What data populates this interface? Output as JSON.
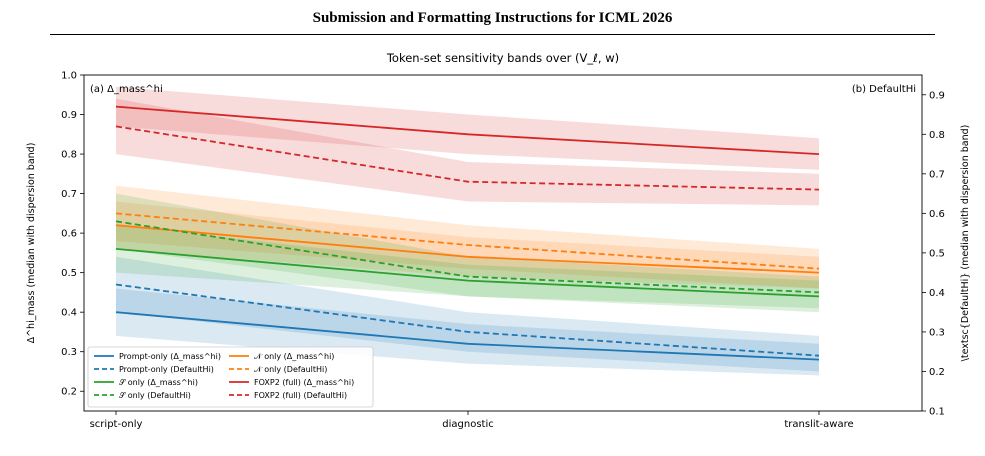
{
  "header": {
    "running_title": "Submission and Formatting Instructions for ICML 2026"
  },
  "chart_data": {
    "type": "line",
    "title": "Token-set sensitivity bands over (V_ℓ, w)",
    "panel_labels": {
      "left": "(a) Δ_mass^hi",
      "right": "(b) DefaultHi"
    },
    "categories": [
      "script-only",
      "diagnostic",
      "translit-aware"
    ],
    "ylabel_left": "Δ^hi_mass (median with dispersion band)",
    "ylabel_right": "\\textsc{DefaultHi} (median with dispersion band)",
    "ylim_left": [
      0.15,
      1.0
    ],
    "yticks_left": [
      "0.2",
      "0.3",
      "0.4",
      "0.5",
      "0.6",
      "0.7",
      "0.8",
      "0.9",
      "1.0"
    ],
    "ylim_right": [
      0.1,
      0.95
    ],
    "yticks_right": [
      "0.1",
      "0.2",
      "0.3",
      "0.4",
      "0.5",
      "0.6",
      "0.7",
      "0.8",
      "0.9"
    ],
    "legend_position": "lower-left",
    "grid": false,
    "series": [
      {
        "name": "Prompt-only  (Δ_mass^hi)",
        "color": "#1f77b4",
        "dash": "solid",
        "values": [
          0.4,
          0.32,
          0.28
        ],
        "band_low": [
          0.34,
          0.27,
          0.24
        ],
        "band_high": [
          0.46,
          0.37,
          0.32
        ]
      },
      {
        "name": "Prompt-only  (DefaultHi)",
        "color": "#1f77b4",
        "dash": "dashed",
        "values": [
          0.47,
          0.35,
          0.29
        ],
        "band_low": [
          0.4,
          0.3,
          0.25
        ],
        "band_high": [
          0.54,
          0.4,
          0.34
        ]
      },
      {
        "name": "𝒩 only  (Δ_mass^hi)",
        "color": "#ff7f0e",
        "dash": "solid",
        "values": [
          0.62,
          0.54,
          0.5
        ],
        "band_low": [
          0.56,
          0.49,
          0.46
        ],
        "band_high": [
          0.68,
          0.59,
          0.54
        ]
      },
      {
        "name": "𝒩 only  (DefaultHi)",
        "color": "#ff7f0e",
        "dash": "dashed",
        "values": [
          0.65,
          0.57,
          0.51
        ],
        "band_low": [
          0.58,
          0.51,
          0.46
        ],
        "band_high": [
          0.72,
          0.62,
          0.56
        ]
      },
      {
        "name": "𝒮 only  (Δ_mass^hi)",
        "color": "#2ca02c",
        "dash": "solid",
        "values": [
          0.56,
          0.48,
          0.44
        ],
        "band_low": [
          0.5,
          0.44,
          0.4
        ],
        "band_high": [
          0.62,
          0.52,
          0.48
        ]
      },
      {
        "name": "𝒮 only  (DefaultHi)",
        "color": "#2ca02c",
        "dash": "dashed",
        "values": [
          0.63,
          0.49,
          0.45
        ],
        "band_low": [
          0.56,
          0.44,
          0.41
        ],
        "band_high": [
          0.7,
          0.54,
          0.49
        ]
      },
      {
        "name": "FOXP2 (full)  (Δ_mass^hi)",
        "color": "#d62728",
        "dash": "solid",
        "values": [
          0.92,
          0.85,
          0.8
        ],
        "band_low": [
          0.87,
          0.8,
          0.76
        ],
        "band_high": [
          0.97,
          0.9,
          0.84
        ]
      },
      {
        "name": "FOXP2 (full)  (DefaultHi)",
        "color": "#d62728",
        "dash": "dashed",
        "values": [
          0.87,
          0.73,
          0.71
        ],
        "band_low": [
          0.8,
          0.68,
          0.67
        ],
        "band_high": [
          0.94,
          0.78,
          0.75
        ]
      }
    ]
  }
}
